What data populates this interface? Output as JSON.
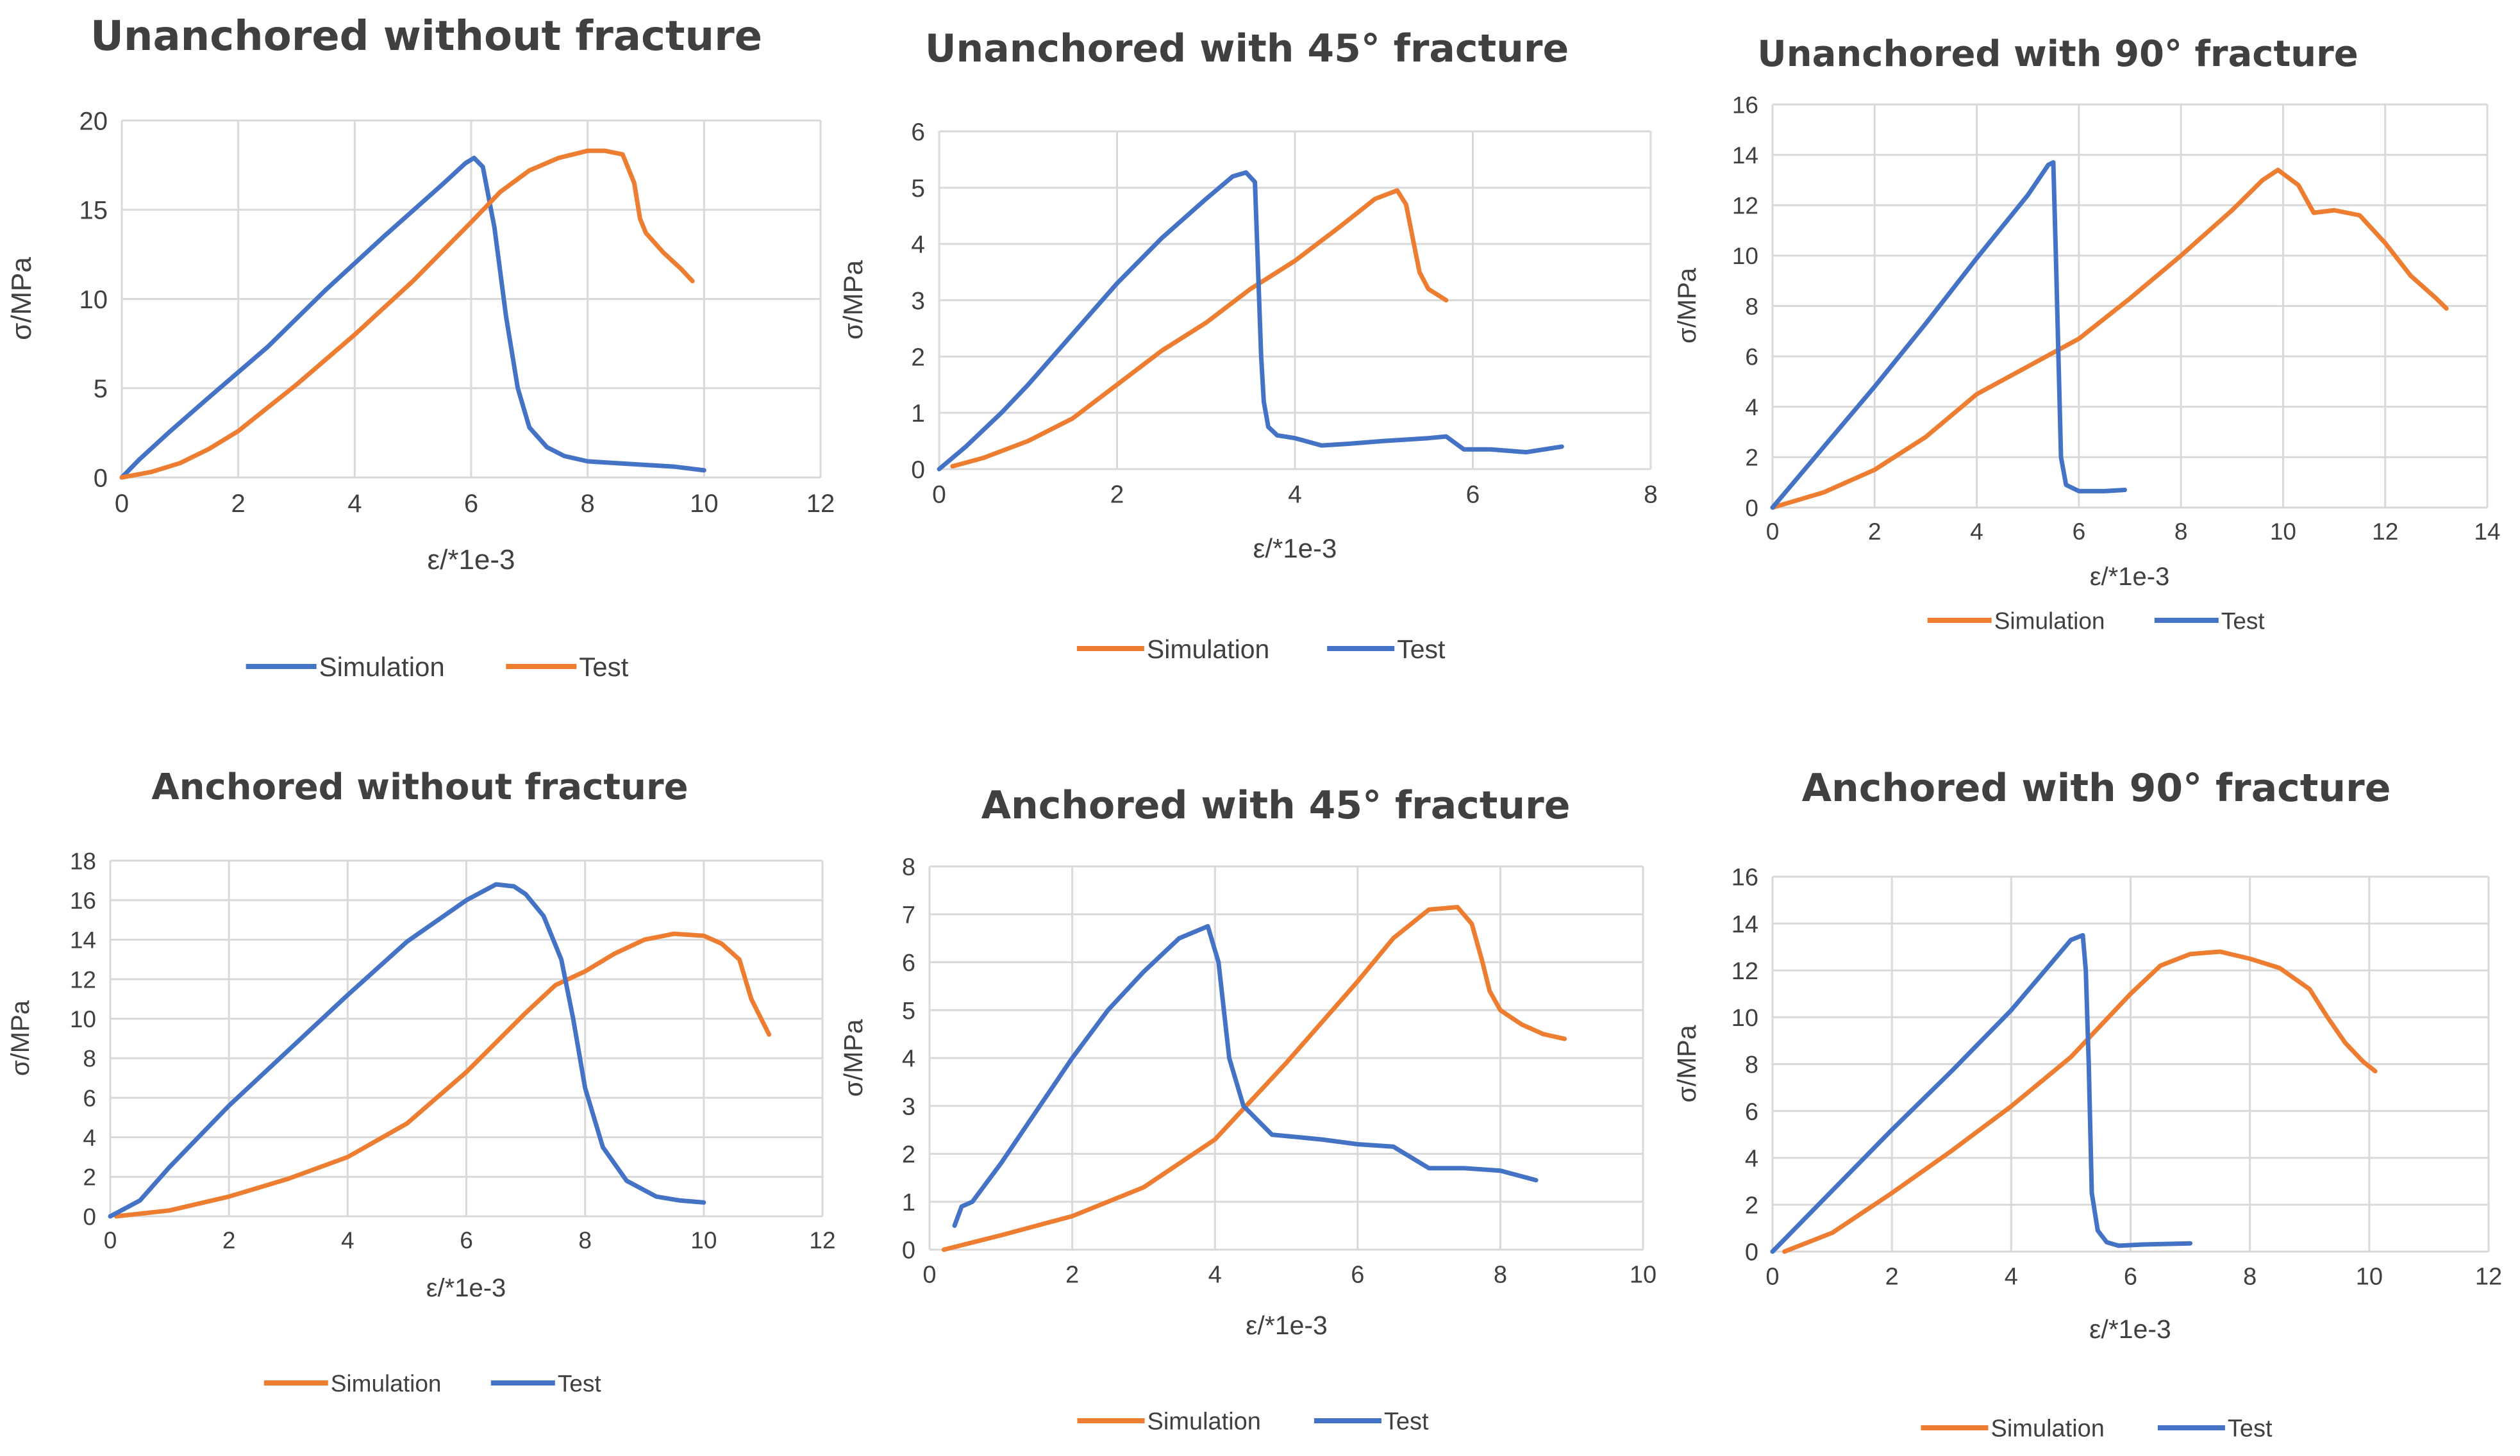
{
  "colors": {
    "blue": "#4472C4",
    "orange": "#ED7D31",
    "grid": "#d9d9d9",
    "text": "#404040"
  },
  "chart_data": [
    {
      "type": "line",
      "title": "Unanchored without fracture",
      "xlabel": "ε/*1e-3",
      "ylabel": "σ/MPa",
      "xlim": [
        0,
        12
      ],
      "xstep": 2,
      "ylim": [
        0,
        20
      ],
      "ystep": 5,
      "xticks": [
        "0",
        "2",
        "4",
        "6",
        "8",
        "10",
        "12"
      ],
      "yticks": [
        "0",
        "5",
        "10",
        "15",
        "20"
      ],
      "legend_position": "bottom",
      "series": [
        {
          "name": "Simulation",
          "color": "blue",
          "x": [
            0,
            0.3,
            0.8,
            1.5,
            2.5,
            3.5,
            4.5,
            5.5,
            5.9,
            6.05,
            6.2,
            6.4,
            6.6,
            6.8,
            7.0,
            7.3,
            7.6,
            8.0,
            8.5,
            9.0,
            9.5,
            10.0
          ],
          "y": [
            0,
            1.0,
            2.5,
            4.5,
            7.3,
            10.5,
            13.5,
            16.4,
            17.6,
            17.9,
            17.4,
            14.0,
            9.0,
            5.0,
            2.8,
            1.7,
            1.2,
            0.9,
            0.8,
            0.7,
            0.6,
            0.4
          ]
        },
        {
          "name": "Test",
          "color": "orange",
          "x": [
            0,
            0.5,
            1.0,
            1.5,
            2.0,
            3.0,
            4.0,
            5.0,
            6.0,
            6.5,
            7.0,
            7.5,
            8.0,
            8.3,
            8.6,
            8.8,
            8.9,
            9.0,
            9.3,
            9.6,
            9.8
          ],
          "y": [
            0,
            0.3,
            0.8,
            1.6,
            2.6,
            5.2,
            8.0,
            11.0,
            14.3,
            16.0,
            17.2,
            17.9,
            18.3,
            18.3,
            18.1,
            16.5,
            14.5,
            13.7,
            12.6,
            11.7,
            11.0
          ]
        }
      ]
    },
    {
      "type": "line",
      "title": "Unanchored with 45°  fracture",
      "xlabel": "ε/*1e-3",
      "ylabel": "σ/MPa",
      "xlim": [
        0,
        8
      ],
      "xstep": 2,
      "ylim": [
        0,
        6
      ],
      "ystep": 1,
      "xticks": [
        "0",
        "2",
        "4",
        "6",
        "8"
      ],
      "yticks": [
        "0",
        "1",
        "2",
        "3",
        "4",
        "5",
        "6"
      ],
      "legend_position": "bottom",
      "series": [
        {
          "name": "Simulation",
          "color": "orange",
          "x": [
            0.15,
            0.5,
            1.0,
            1.5,
            2.0,
            2.5,
            3.0,
            3.5,
            4.0,
            4.5,
            4.9,
            5.15,
            5.25,
            5.35,
            5.4,
            5.5,
            5.7
          ],
          "y": [
            0.05,
            0.2,
            0.5,
            0.9,
            1.5,
            2.1,
            2.6,
            3.2,
            3.7,
            4.3,
            4.8,
            4.95,
            4.7,
            3.9,
            3.5,
            3.2,
            3.0
          ]
        },
        {
          "name": "Test",
          "color": "blue",
          "x": [
            0,
            0.3,
            0.7,
            1.0,
            1.5,
            2.0,
            2.5,
            3.0,
            3.3,
            3.45,
            3.55,
            3.58,
            3.62,
            3.65,
            3.7,
            3.8,
            4.0,
            4.3,
            4.6,
            5.0,
            5.5,
            5.7,
            5.9,
            6.2,
            6.6,
            7.0
          ],
          "y": [
            0,
            0.4,
            1.0,
            1.5,
            2.4,
            3.3,
            4.1,
            4.8,
            5.2,
            5.27,
            5.1,
            3.8,
            2.0,
            1.2,
            0.75,
            0.6,
            0.55,
            0.42,
            0.45,
            0.5,
            0.55,
            0.58,
            0.35,
            0.35,
            0.3,
            0.4
          ]
        }
      ]
    },
    {
      "type": "line",
      "title": "Unanchored with 90°  fracture",
      "xlabel": "ε/*1e-3",
      "ylabel": "σ/MPa",
      "xlim": [
        0,
        14
      ],
      "xstep": 2,
      "ylim": [
        0,
        16
      ],
      "ystep": 2,
      "xticks": [
        "0",
        "2",
        "4",
        "6",
        "8",
        "10",
        "12",
        "14"
      ],
      "yticks": [
        "0",
        "2",
        "4",
        "6",
        "8",
        "10",
        "12",
        "14",
        "16"
      ],
      "legend_position": "bottom",
      "series": [
        {
          "name": "Simulation",
          "color": "orange",
          "x": [
            0,
            1.0,
            2.0,
            3.0,
            4.0,
            5.0,
            6.0,
            7.0,
            8.0,
            9.0,
            9.6,
            9.9,
            10.3,
            10.6,
            11.0,
            11.5,
            12.0,
            12.5,
            13.0,
            13.2
          ],
          "y": [
            0,
            0.6,
            1.5,
            2.8,
            4.5,
            5.6,
            6.7,
            8.3,
            10.0,
            11.8,
            13.0,
            13.4,
            12.8,
            11.7,
            11.8,
            11.6,
            10.5,
            9.2,
            8.3,
            7.9
          ]
        },
        {
          "name": "Test",
          "color": "blue",
          "x": [
            0,
            0.5,
            1.0,
            2.0,
            3.0,
            4.0,
            5.0,
            5.4,
            5.5,
            5.55,
            5.6,
            5.65,
            5.75,
            6.0,
            6.5,
            6.9
          ],
          "y": [
            0,
            1.2,
            2.4,
            4.8,
            7.3,
            9.9,
            12.4,
            13.6,
            13.7,
            10.0,
            6.0,
            2.0,
            0.9,
            0.65,
            0.65,
            0.7
          ]
        }
      ]
    },
    {
      "type": "line",
      "title": "Anchored without fracture",
      "xlabel": "ε/*1e-3",
      "ylabel": "σ/MPa",
      "xlim": [
        0,
        12
      ],
      "xstep": 2,
      "ylim": [
        0,
        18
      ],
      "ystep": 2,
      "xticks": [
        "0",
        "2",
        "4",
        "6",
        "8",
        "10",
        "12"
      ],
      "yticks": [
        "0",
        "2",
        "4",
        "6",
        "8",
        "10",
        "12",
        "14",
        "16",
        "18"
      ],
      "legend_position": "bottom",
      "series": [
        {
          "name": "Simulation",
          "color": "orange",
          "x": [
            0.1,
            1.0,
            2.0,
            3.0,
            4.0,
            5.0,
            6.0,
            7.0,
            7.5,
            8.0,
            8.5,
            9.0,
            9.5,
            10.0,
            10.3,
            10.6,
            10.8,
            11.1
          ],
          "y": [
            0,
            0.3,
            1.0,
            1.9,
            3.0,
            4.7,
            7.3,
            10.3,
            11.7,
            12.4,
            13.3,
            14.0,
            14.3,
            14.2,
            13.8,
            13.0,
            11.0,
            9.2
          ]
        },
        {
          "name": "Test",
          "color": "blue",
          "x": [
            0,
            0.5,
            1.0,
            2.0,
            3.0,
            4.0,
            5.0,
            6.0,
            6.5,
            6.8,
            7.0,
            7.3,
            7.6,
            7.8,
            8.0,
            8.3,
            8.7,
            9.2,
            9.6,
            10.0
          ],
          "y": [
            0,
            0.8,
            2.5,
            5.6,
            8.4,
            11.2,
            13.9,
            16.0,
            16.8,
            16.7,
            16.3,
            15.2,
            13.0,
            10.0,
            6.5,
            3.5,
            1.8,
            1.0,
            0.8,
            0.7
          ]
        }
      ]
    },
    {
      "type": "line",
      "title": "Anchored with 45°  fracture",
      "xlabel": "ε/*1e-3",
      "ylabel": "σ/MPa",
      "xlim": [
        0,
        10
      ],
      "xstep": 2,
      "ylim": [
        0,
        8
      ],
      "ystep": 1,
      "xticks": [
        "0",
        "2",
        "4",
        "6",
        "8",
        "10"
      ],
      "yticks": [
        "0",
        "1",
        "2",
        "3",
        "4",
        "5",
        "6",
        "7",
        "8"
      ],
      "legend_position": "bottom",
      "series": [
        {
          "name": "Simulation",
          "color": "orange",
          "x": [
            0.2,
            1.0,
            2.0,
            3.0,
            4.0,
            5.0,
            6.0,
            6.5,
            7.0,
            7.4,
            7.6,
            7.75,
            7.85,
            8.0,
            8.3,
            8.6,
            8.9
          ],
          "y": [
            0,
            0.3,
            0.7,
            1.3,
            2.3,
            3.9,
            5.6,
            6.5,
            7.1,
            7.15,
            6.8,
            6.0,
            5.4,
            5.0,
            4.7,
            4.5,
            4.4
          ]
        },
        {
          "name": "Test",
          "color": "blue",
          "x": [
            0.35,
            0.45,
            0.6,
            1.0,
            1.5,
            2.0,
            2.5,
            3.0,
            3.5,
            3.9,
            4.05,
            4.2,
            4.4,
            4.8,
            5.5,
            6.0,
            6.5,
            7.0,
            7.5,
            8.0,
            8.5
          ],
          "y": [
            0.5,
            0.9,
            1.0,
            1.8,
            2.9,
            4.0,
            5.0,
            5.8,
            6.5,
            6.75,
            6.0,
            4.0,
            3.0,
            2.4,
            2.3,
            2.2,
            2.15,
            1.7,
            1.7,
            1.65,
            1.45
          ]
        }
      ]
    },
    {
      "type": "line",
      "title": "Anchored with 90°  fracture",
      "xlabel": "ε/*1e-3",
      "ylabel": "σ/MPa",
      "xlim": [
        0,
        12
      ],
      "xstep": 2,
      "ylim": [
        0,
        16
      ],
      "ystep": 2,
      "xticks": [
        "0",
        "2",
        "4",
        "6",
        "8",
        "10",
        "12"
      ],
      "yticks": [
        "0",
        "2",
        "4",
        "6",
        "8",
        "10",
        "12",
        "14",
        "16"
      ],
      "legend_position": "bottom",
      "series": [
        {
          "name": "Simulation",
          "color": "orange",
          "x": [
            0.2,
            1.0,
            2.0,
            3.0,
            4.0,
            5.0,
            6.0,
            6.5,
            7.0,
            7.5,
            8.0,
            8.5,
            9.0,
            9.3,
            9.6,
            9.9,
            10.1
          ],
          "y": [
            0,
            0.8,
            2.5,
            4.3,
            6.2,
            8.3,
            11.0,
            12.2,
            12.7,
            12.8,
            12.5,
            12.1,
            11.2,
            10.0,
            8.9,
            8.1,
            7.7
          ]
        },
        {
          "name": "Test",
          "color": "blue",
          "x": [
            0,
            0.5,
            1.0,
            2.0,
            3.0,
            4.0,
            4.5,
            5.0,
            5.2,
            5.25,
            5.3,
            5.35,
            5.45,
            5.6,
            5.8,
            6.2,
            7.0
          ],
          "y": [
            0,
            1.3,
            2.6,
            5.2,
            7.7,
            10.3,
            11.8,
            13.3,
            13.5,
            12.0,
            8.0,
            2.5,
            0.9,
            0.4,
            0.25,
            0.3,
            0.35
          ]
        }
      ]
    }
  ]
}
